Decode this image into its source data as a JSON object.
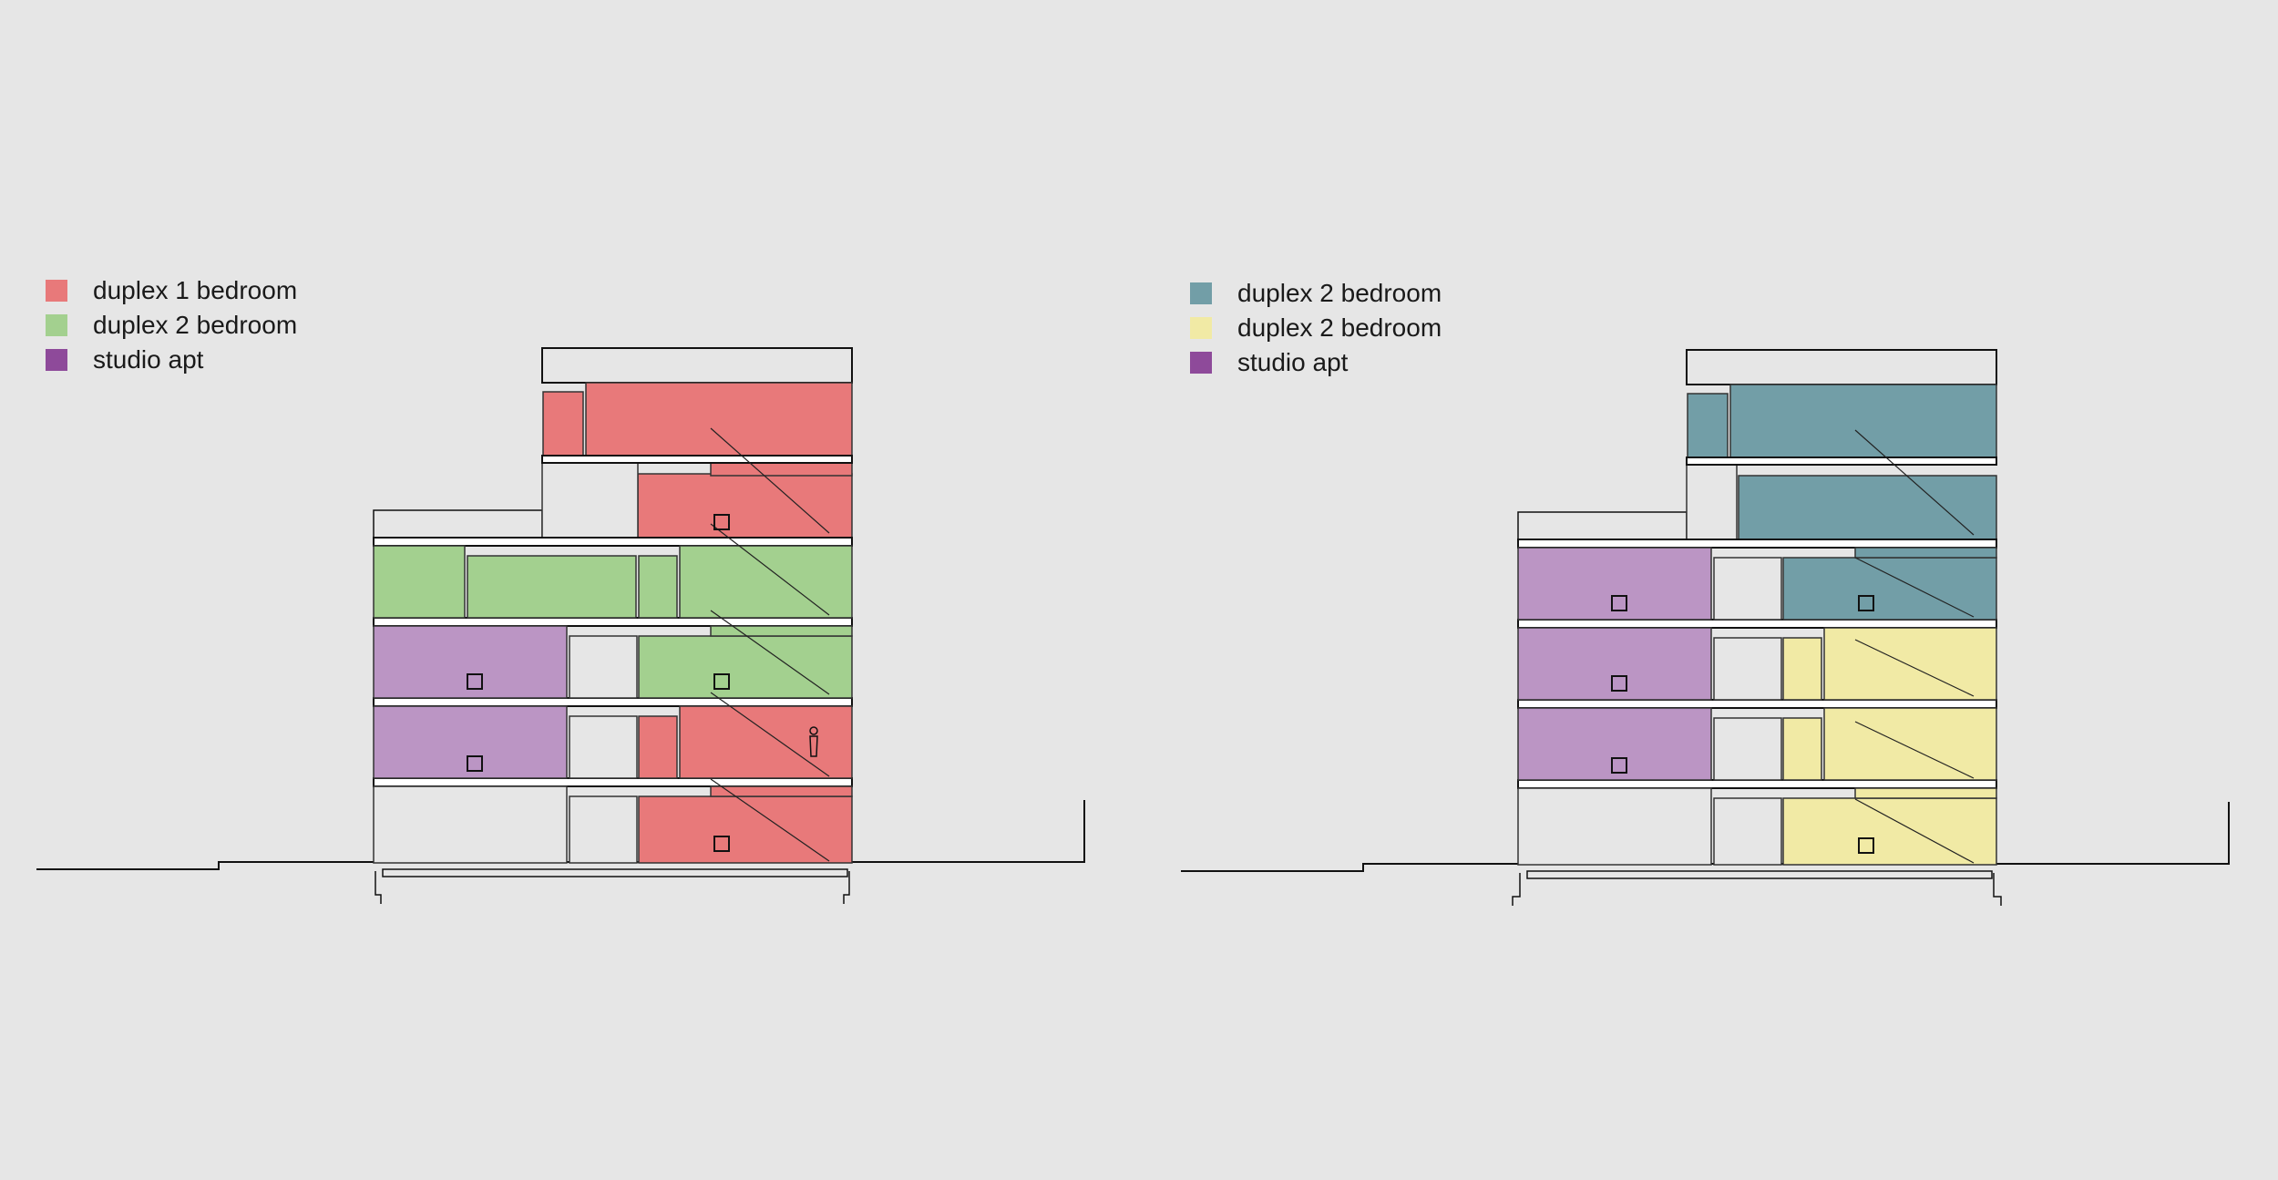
{
  "colors": {
    "background": "#e6e6e6",
    "red": "#e8797a",
    "green": "#a3d08f",
    "purple": "#bb95c4",
    "teal": "#729ea7",
    "yellow": "#f1eaa5"
  },
  "left_legend": [
    {
      "label": "duplex 1 bedroom",
      "swatch_color": "#e8797a"
    },
    {
      "label": "duplex 2 bedroom",
      "swatch_color": "#a3d08f"
    },
    {
      "label": "studio apt",
      "swatch_color": "#8e4a9a"
    }
  ],
  "right_legend": [
    {
      "label": "duplex 2 bedroom",
      "swatch_color": "#729ea7"
    },
    {
      "label": "duplex 2 bedroom",
      "swatch_color": "#f1eaa5"
    },
    {
      "label": "studio apt",
      "swatch_color": "#8e4a9a"
    }
  ],
  "left_section": {
    "roof_level": "red",
    "level_4": [
      "green",
      "green",
      "green",
      "green"
    ],
    "level_3": [
      "purple",
      "green"
    ],
    "level_2": [
      "purple",
      "red"
    ],
    "level_1": [
      "red"
    ]
  },
  "right_section": {
    "roof_level": "teal",
    "level_4": [
      "purple",
      "teal"
    ],
    "level_3": [
      "purple",
      "yellow"
    ],
    "level_2": [
      "purple",
      "yellow"
    ],
    "level_1": [
      "yellow"
    ]
  }
}
